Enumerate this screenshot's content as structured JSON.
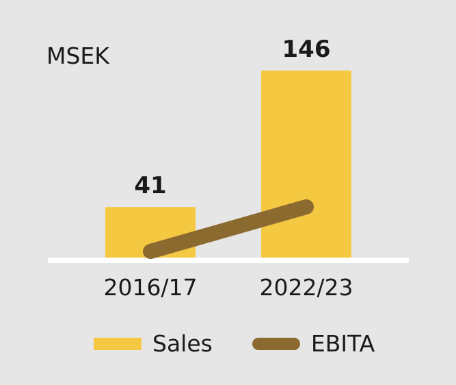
{
  "unit": "MSEK",
  "chart_data": {
    "type": "bar",
    "categories": [
      "2016/17",
      "2022/23"
    ],
    "series": [
      {
        "name": "Sales",
        "type": "bar",
        "values": [
          41,
          146
        ],
        "color": "#f5c842"
      },
      {
        "name": "EBITA",
        "type": "line",
        "color": "#8b6a30"
      }
    ],
    "data_labels": [
      "41",
      "146"
    ],
    "ylim": [
      0,
      146
    ],
    "legend": "bottom",
    "grid": false
  },
  "colors": {
    "background": "#e6e6e6",
    "baseline": "#ffffff",
    "text": "#1a1a1a"
  }
}
